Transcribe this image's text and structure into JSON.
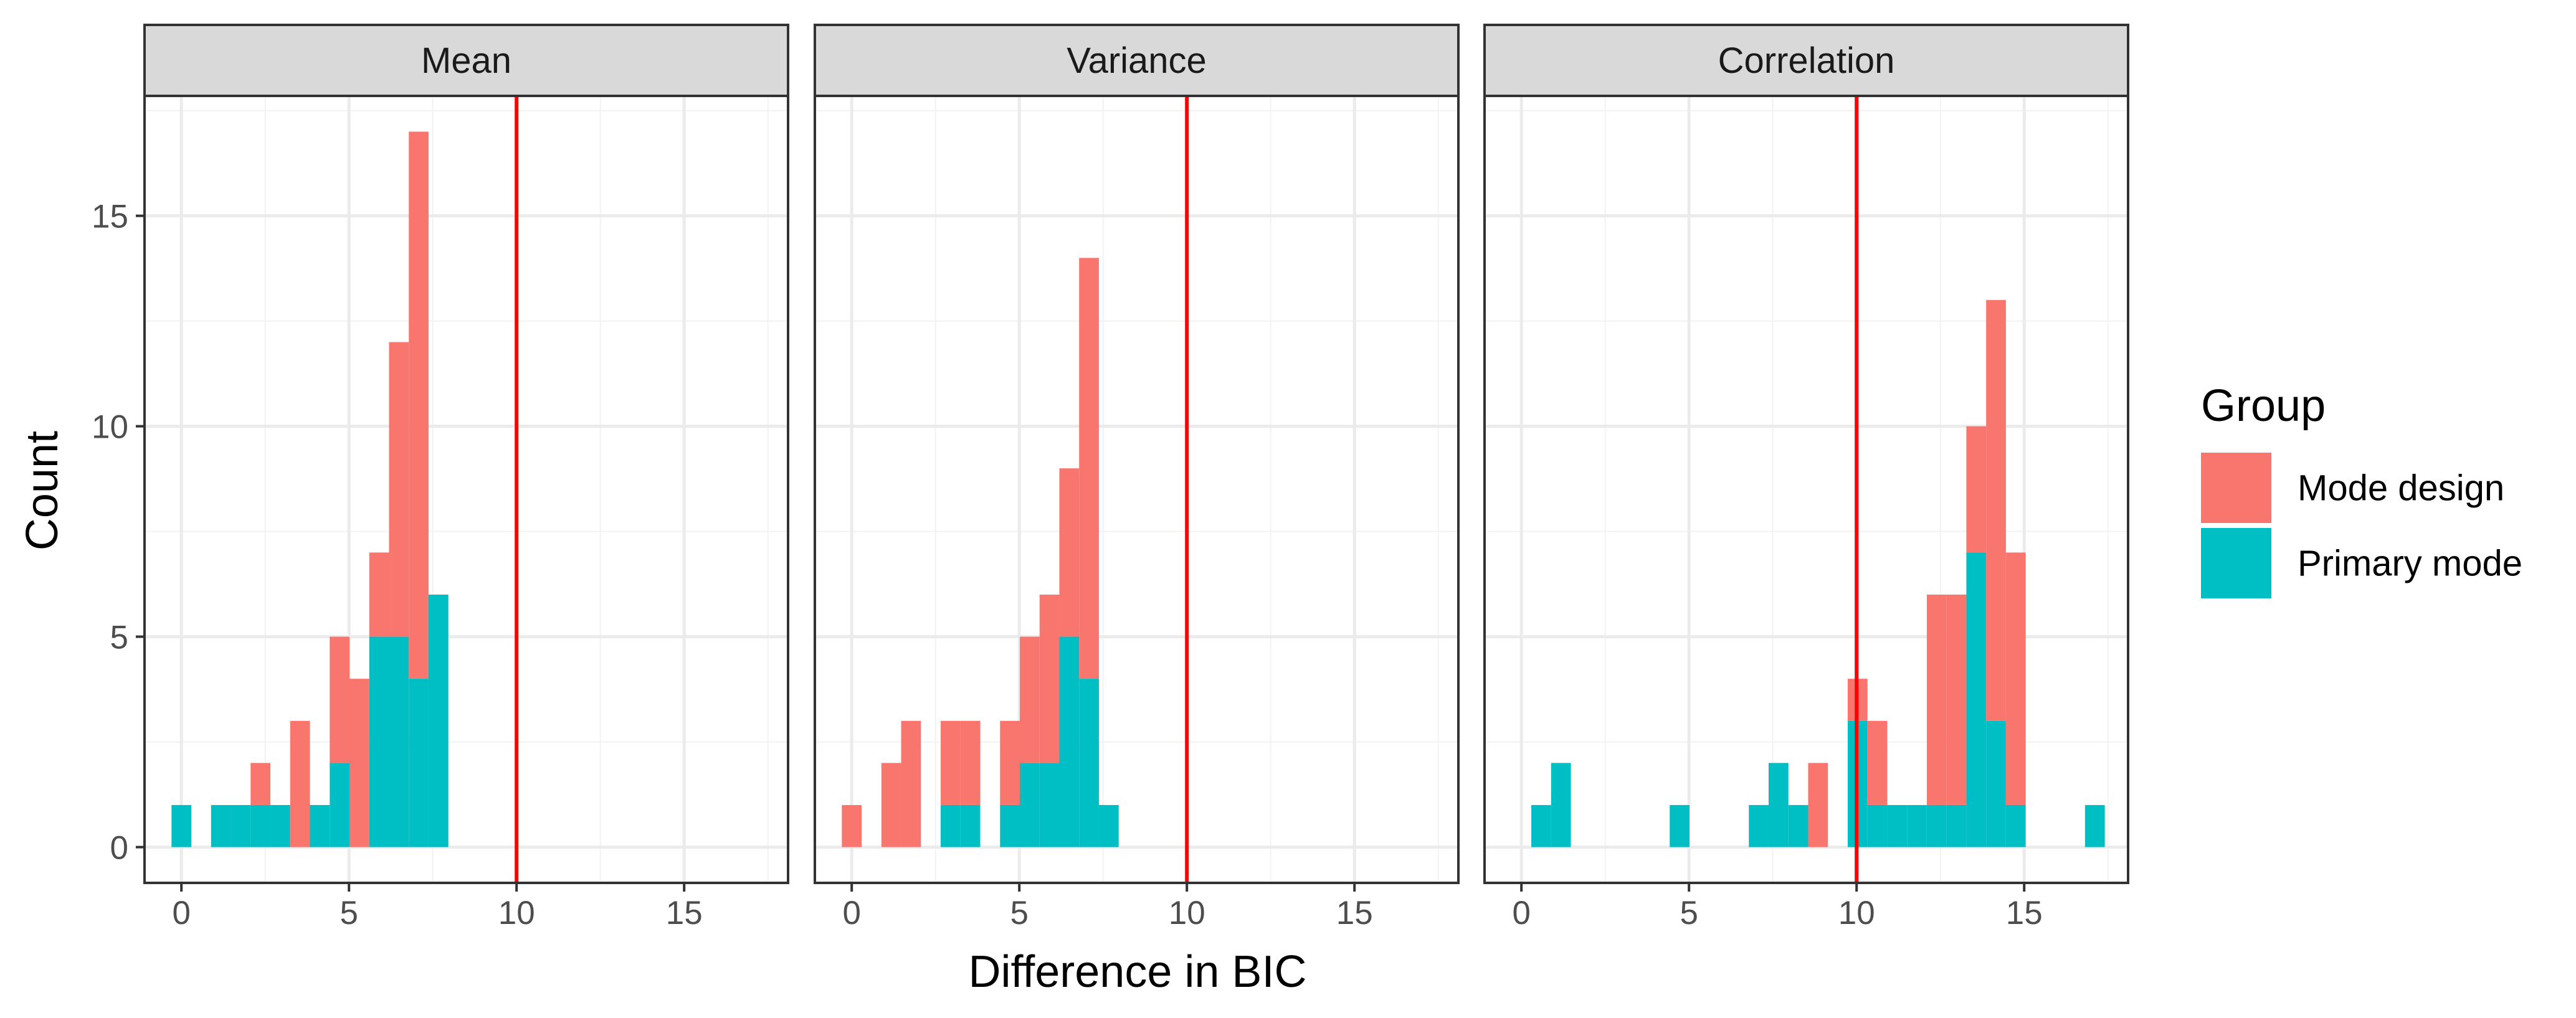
{
  "chart_data": {
    "type": "bar",
    "subtype": "faceted stacked histogram",
    "xlabel": "Difference in BIC",
    "ylabel": "Count",
    "xlim": [
      -1.1,
      18.1
    ],
    "ylim": [
      -0.85,
      17.85
    ],
    "x_ticks": [
      0,
      5,
      10,
      15
    ],
    "y_ticks": [
      0,
      5,
      10,
      15
    ],
    "x_tick_labels": [
      "0",
      "5",
      "10",
      "15"
    ],
    "y_tick_labels": [
      "0",
      "5",
      "10",
      "15"
    ],
    "bin_width": 0.59,
    "grid": true,
    "theme": "bw",
    "reference_line": {
      "x": 10,
      "color": "#FF0000"
    },
    "legend": {
      "title": "Group",
      "position": "right",
      "entries": [
        {
          "label": "Mode design",
          "color": "#F8766D"
        },
        {
          "label": "Primary mode",
          "color": "#00BFC4"
        }
      ]
    },
    "series_colors": {
      "Mode design": "#F8766D",
      "Primary mode": "#00BFC4"
    },
    "facets": [
      {
        "label": "Mean",
        "bins": [
          {
            "x": 0.0,
            "primary": 1,
            "total": 1
          },
          {
            "x": 1.18,
            "primary": 1,
            "total": 1
          },
          {
            "x": 1.77,
            "primary": 1,
            "total": 1
          },
          {
            "x": 2.36,
            "primary": 1,
            "total": 2
          },
          {
            "x": 2.95,
            "primary": 1,
            "total": 1
          },
          {
            "x": 3.54,
            "primary": 0,
            "total": 3
          },
          {
            "x": 4.13,
            "primary": 1,
            "total": 1
          },
          {
            "x": 4.72,
            "primary": 2,
            "total": 5
          },
          {
            "x": 5.31,
            "primary": 0,
            "total": 4
          },
          {
            "x": 5.9,
            "primary": 5,
            "total": 7
          },
          {
            "x": 6.49,
            "primary": 5,
            "total": 12
          },
          {
            "x": 7.08,
            "primary": 4,
            "total": 17
          },
          {
            "x": 7.67,
            "primary": 6,
            "total": 6
          }
        ]
      },
      {
        "label": "Variance",
        "bins": [
          {
            "x": 0.0,
            "primary": 0,
            "total": 1
          },
          {
            "x": 1.18,
            "primary": 0,
            "total": 2
          },
          {
            "x": 1.77,
            "primary": 0,
            "total": 3
          },
          {
            "x": 2.95,
            "primary": 1,
            "total": 3
          },
          {
            "x": 3.54,
            "primary": 1,
            "total": 3
          },
          {
            "x": 4.72,
            "primary": 1,
            "total": 3
          },
          {
            "x": 5.31,
            "primary": 2,
            "total": 5
          },
          {
            "x": 5.9,
            "primary": 2,
            "total": 6
          },
          {
            "x": 6.49,
            "primary": 5,
            "total": 9
          },
          {
            "x": 7.08,
            "primary": 4,
            "total": 14
          },
          {
            "x": 7.67,
            "primary": 1,
            "total": 1
          }
        ]
      },
      {
        "label": "Correlation",
        "bins": [
          {
            "x": 0.59,
            "primary": 1,
            "total": 1
          },
          {
            "x": 1.18,
            "primary": 2,
            "total": 2
          },
          {
            "x": 4.72,
            "primary": 1,
            "total": 1
          },
          {
            "x": 7.08,
            "primary": 1,
            "total": 1
          },
          {
            "x": 7.67,
            "primary": 2,
            "total": 2
          },
          {
            "x": 8.26,
            "primary": 1,
            "total": 1
          },
          {
            "x": 8.85,
            "primary": 0,
            "total": 2
          },
          {
            "x": 10.03,
            "primary": 3,
            "total": 4
          },
          {
            "x": 10.62,
            "primary": 1,
            "total": 3
          },
          {
            "x": 11.21,
            "primary": 1,
            "total": 1
          },
          {
            "x": 11.8,
            "primary": 1,
            "total": 1
          },
          {
            "x": 12.39,
            "primary": 1,
            "total": 6
          },
          {
            "x": 12.98,
            "primary": 1,
            "total": 6
          },
          {
            "x": 13.57,
            "primary": 7,
            "total": 10
          },
          {
            "x": 14.16,
            "primary": 3,
            "total": 13
          },
          {
            "x": 14.75,
            "primary": 1,
            "total": 7
          },
          {
            "x": 17.11,
            "primary": 1,
            "total": 1
          }
        ]
      }
    ]
  }
}
